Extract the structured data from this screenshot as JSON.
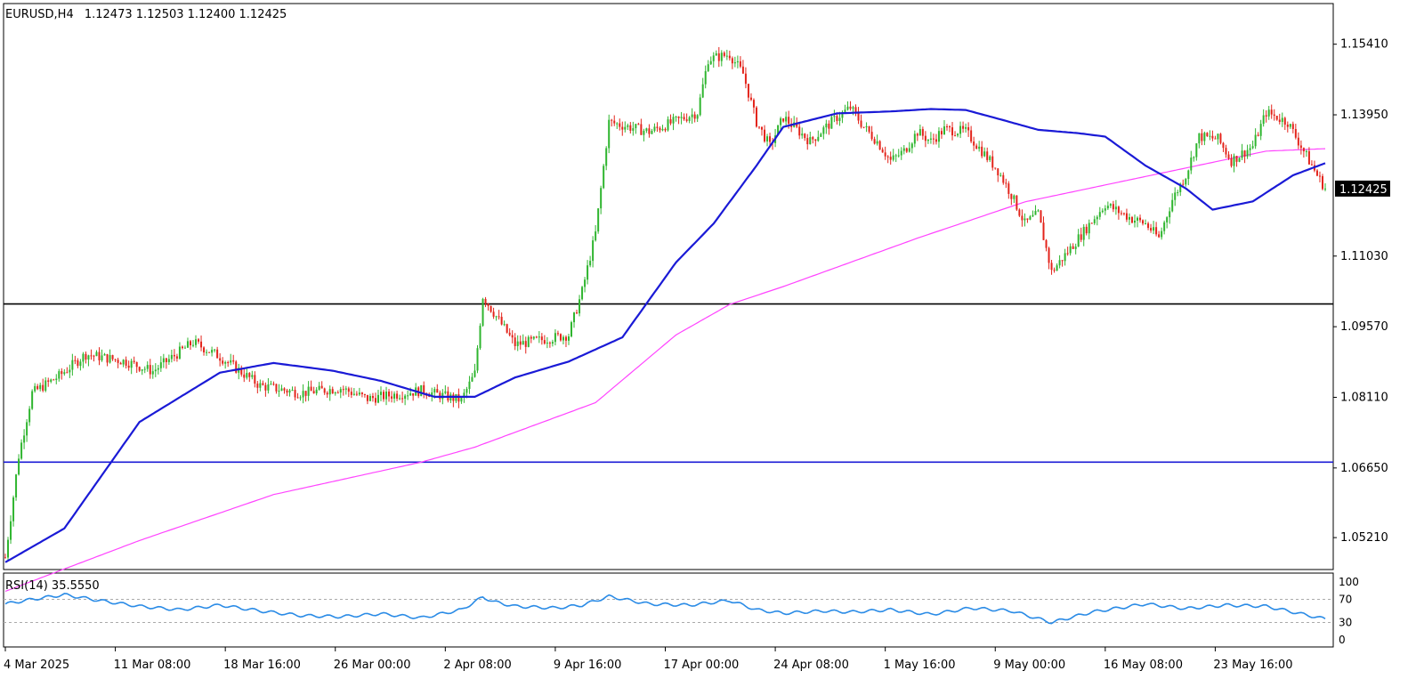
{
  "header": {
    "symbol": "EURUSD,H4",
    "ohlc": "1.12473 1.12503 1.12400 1.12425"
  },
  "price_axis": {
    "ticks": [
      "1.15410",
      "1.13950",
      "1.11030",
      "1.09570",
      "1.08110",
      "1.06650",
      "1.05210"
    ],
    "current_price_label": "1.12425"
  },
  "time_axis": {
    "ticks": [
      "4 Mar 2025",
      "11 Mar 08:00",
      "18 Mar 16:00",
      "26 Mar 00:00",
      "2 Apr 08:00",
      "9 Apr 16:00",
      "17 Apr 00:00",
      "24 Apr 08:00",
      "1 May 16:00",
      "9 May 00:00",
      "16 May 08:00",
      "23 May 16:00"
    ]
  },
  "rsi": {
    "label": "RSI(14) 35.5550",
    "ticks": [
      "100",
      "70",
      "30",
      "0"
    ]
  },
  "colors": {
    "bull": "#26a69a",
    "bull_candle": "#2fb52f",
    "bear": "#e3241b",
    "ma_fast": "#1a1ad6",
    "ma_slow": "#ff44ff",
    "rsi_line": "#2a8be6",
    "support_line": "#1a1ad6",
    "resistance_line": "#000000",
    "price_tag_bg": "#000000"
  },
  "chart_data": {
    "type": "candlestick",
    "title": "EURUSD,H4",
    "ylim": [
      1.0455,
      1.1625
    ],
    "horizontal_levels": [
      {
        "value": 1.1004,
        "color": "#000000"
      },
      {
        "value": 1.0677,
        "color": "#1a1ad6"
      }
    ],
    "ma_fast": {
      "x": [
        0,
        22,
        50,
        80,
        100,
        122,
        140,
        160,
        175,
        190,
        210,
        230,
        250,
        264,
        280,
        290,
        310,
        330,
        345,
        358,
        372,
        385,
        400,
        410,
        425,
        440,
        450,
        465,
        480,
        492
      ],
      "y": [
        1.047,
        1.054,
        1.076,
        1.0862,
        1.0882,
        1.0866,
        1.0845,
        1.0812,
        1.0812,
        1.0852,
        1.0885,
        1.0935,
        1.109,
        1.117,
        1.129,
        1.137,
        1.1398,
        1.1402,
        1.1407,
        1.1405,
        1.1384,
        1.1364,
        1.1357,
        1.135,
        1.129,
        1.1243,
        1.1199,
        1.1216,
        1.127,
        1.1295
      ]
    },
    "ma_slow": {
      "x": [
        0,
        50,
        100,
        155,
        175,
        220,
        250,
        270,
        290,
        310,
        340,
        380,
        410,
        440,
        470,
        492
      ],
      "y": [
        1.041,
        1.0515,
        1.061,
        1.0677,
        1.0708,
        1.08,
        1.094,
        1.1003,
        1.104,
        1.108,
        1.114,
        1.1215,
        1.125,
        1.1285,
        1.132,
        1.1325
      ]
    },
    "rsi": {
      "ylim": [
        0,
        100
      ],
      "levels": [
        70,
        30
      ],
      "x": [
        0,
        10,
        22,
        35,
        50,
        65,
        80,
        95,
        110,
        125,
        140,
        155,
        170,
        178,
        182,
        190,
        205,
        215,
        225,
        240,
        255,
        270,
        280,
        290,
        305,
        315,
        330,
        345,
        360,
        375,
        390,
        405,
        425,
        440,
        455,
        470,
        480,
        492
      ],
      "y": [
        62,
        70,
        78,
        68,
        58,
        52,
        60,
        50,
        42,
        40,
        45,
        38,
        52,
        74,
        66,
        58,
        55,
        60,
        75,
        62,
        60,
        68,
        52,
        46,
        50,
        48,
        52,
        44,
        55,
        50,
        30,
        48,
        62,
        54,
        60,
        58,
        48,
        36
      ]
    },
    "candles": {
      "count": 493,
      "keypoints_x": [
        0,
        5,
        10,
        20,
        30,
        45,
        55,
        70,
        80,
        95,
        110,
        125,
        135,
        155,
        170,
        175,
        178,
        190,
        200,
        210,
        215,
        220,
        225,
        240,
        258,
        262,
        270,
        275,
        280,
        285,
        290,
        300,
        310,
        315,
        320,
        325,
        330,
        335,
        340,
        345,
        350,
        358,
        370,
        375,
        380,
        385,
        390,
        395,
        400,
        410,
        420,
        425,
        430,
        435,
        440,
        445,
        452,
        457,
        465,
        470,
        478,
        482,
        485,
        489,
        492
      ],
      "keypoints_y": [
        1.048,
        1.069,
        1.082,
        1.0855,
        1.09,
        1.0885,
        1.0865,
        1.0925,
        1.0895,
        1.0835,
        1.082,
        1.083,
        1.0808,
        1.0825,
        1.0805,
        1.086,
        1.102,
        1.092,
        1.093,
        1.094,
        1.103,
        1.115,
        1.138,
        1.136,
        1.14,
        1.151,
        1.152,
        1.148,
        1.138,
        1.133,
        1.139,
        1.134,
        1.139,
        1.141,
        1.137,
        1.134,
        1.13,
        1.132,
        1.136,
        1.134,
        1.1365,
        1.136,
        1.128,
        1.123,
        1.117,
        1.119,
        1.107,
        1.1105,
        1.114,
        1.121,
        1.118,
        1.117,
        1.114,
        1.122,
        1.127,
        1.135,
        1.1345,
        1.13,
        1.133,
        1.14,
        1.138,
        1.134,
        1.131,
        1.127,
        1.1243
      ]
    }
  }
}
